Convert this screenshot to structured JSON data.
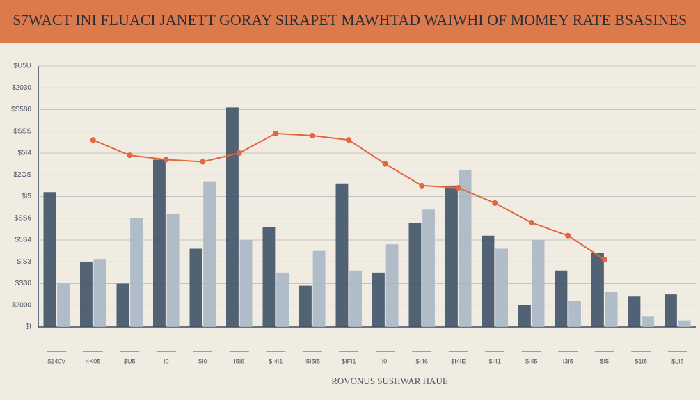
{
  "chart_data": {
    "type": "bar",
    "title": "$7WACT INI FLUACI JANETT GORAY SIRAPET MAWHTAD WAIWHI OF MOMEY RATE BSASINES",
    "x_label": "ROVONUS SUSHWAR HAUE",
    "categories": [
      "$140V",
      "4K05",
      "$U5",
      "I0",
      "$I0",
      "I5I6",
      "$I4I1",
      "I5I5I5",
      "$IFI1",
      "I0I",
      "$I46",
      "$I4IE",
      "$I41",
      "$I45",
      "I3I5",
      "$I5",
      "$1I8",
      "$LI5"
    ],
    "series": [
      {
        "type": "bar",
        "color": "#3e5368",
        "values": [
          6.2,
          3.0,
          2.0,
          7.7,
          3.6,
          10.1,
          4.6,
          1.9,
          6.6,
          2.5,
          4.8,
          6.5,
          4.2,
          1.0,
          2.6,
          3.4,
          1.4,
          1.5
        ]
      },
      {
        "type": "bar",
        "color": "#a9b8c6",
        "values": [
          2.0,
          3.1,
          5.0,
          5.2,
          6.7,
          4.0,
          2.5,
          3.5,
          2.6,
          3.8,
          5.4,
          7.2,
          3.6,
          4.0,
          1.2,
          1.6,
          0.5,
          0.3
        ]
      },
      {
        "type": "line",
        "color": "#e0673e",
        "values": [
          null,
          8.6,
          7.9,
          7.7,
          7.6,
          8.0,
          8.9,
          8.8,
          8.6,
          7.5,
          6.5,
          6.4,
          5.7,
          4.8,
          4.2,
          3.1,
          null,
          null
        ]
      }
    ],
    "ylim": [
      0,
      12
    ],
    "yticks": [
      {
        "value": 0,
        "label": "$I"
      },
      {
        "value": 1,
        "label": "$2000"
      },
      {
        "value": 2,
        "label": "$S30"
      },
      {
        "value": 3,
        "label": "$IS3"
      },
      {
        "value": 4,
        "label": "$5S4"
      },
      {
        "value": 5,
        "label": "$SS6"
      },
      {
        "value": 6,
        "label": "$I5"
      },
      {
        "value": 7,
        "label": "$2OS"
      },
      {
        "value": 8,
        "label": "$5I4"
      },
      {
        "value": 9,
        "label": "$SSS"
      },
      {
        "value": 10,
        "label": "$S580"
      },
      {
        "value": 11,
        "label": "$2030"
      },
      {
        "value": 12,
        "label": "$U5U"
      }
    ],
    "grid": true
  }
}
